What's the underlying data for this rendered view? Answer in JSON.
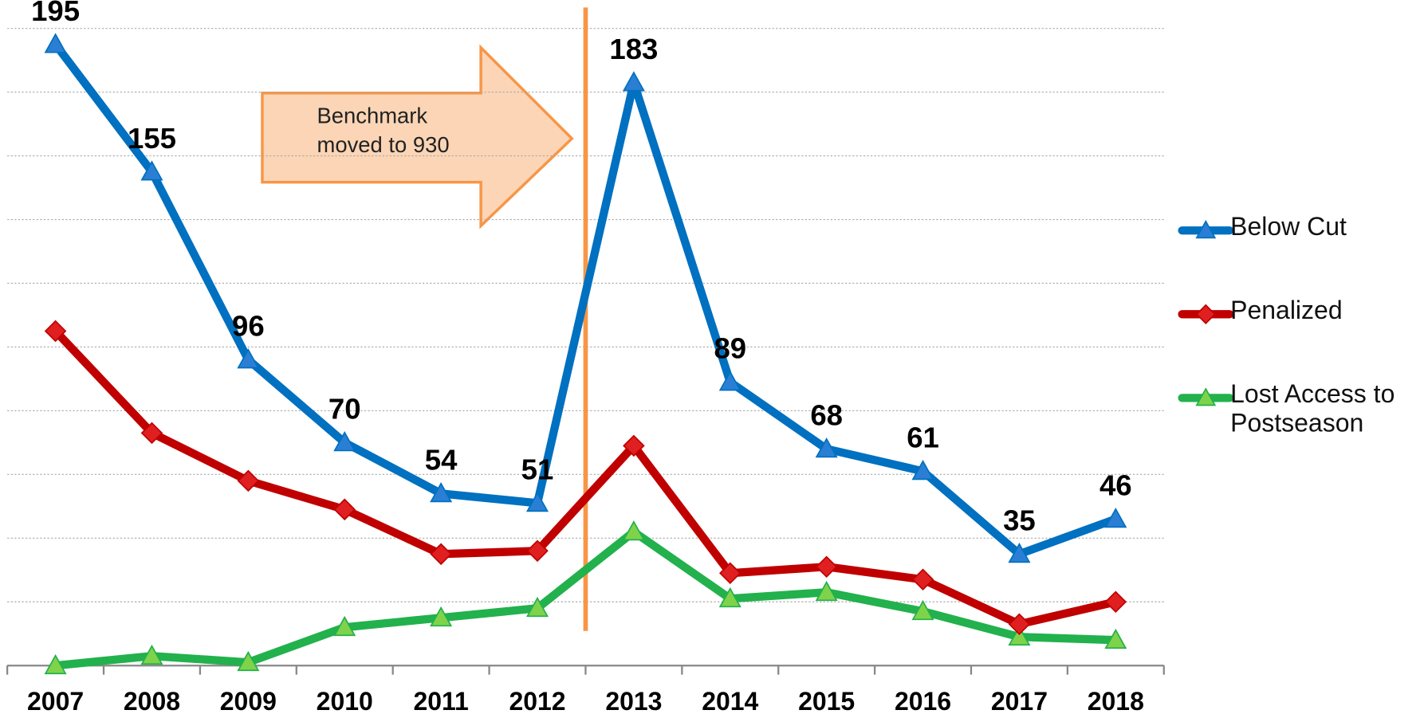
{
  "chart_data": {
    "type": "line",
    "categories": [
      "2007",
      "2008",
      "2009",
      "2010",
      "2011",
      "2012",
      "2013",
      "2014",
      "2015",
      "2016",
      "2017",
      "2018"
    ],
    "series": [
      {
        "name": "Below Cut",
        "color": "#0070c0",
        "marker": "triangle",
        "values": [
          195,
          155,
          96,
          70,
          54,
          51,
          183,
          89,
          68,
          61,
          35,
          46
        ],
        "data_labels": true
      },
      {
        "name": "Penalized",
        "color": "#c00000",
        "marker": "diamond",
        "values": [
          105,
          73,
          58,
          49,
          35,
          36,
          69,
          29,
          31,
          27,
          13,
          20
        ]
      },
      {
        "name": "Lost Access to Postseason",
        "color": "#22b14c",
        "marker": "triangle",
        "values": [
          0,
          3,
          1,
          12,
          15,
          18,
          42,
          21,
          23,
          17,
          9,
          8
        ]
      }
    ],
    "annotation": "Benchmark moved to 930",
    "ylim": [
      0,
      200
    ],
    "yticks": [
      0,
      20,
      40,
      60,
      80,
      100,
      120,
      140,
      160,
      180,
      200
    ],
    "grid": true,
    "legend": "right"
  }
}
